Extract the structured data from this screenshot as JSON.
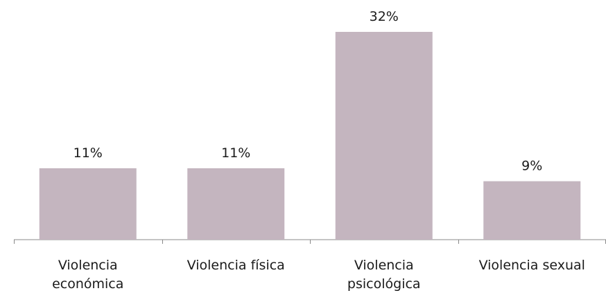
{
  "chart_data": {
    "type": "bar",
    "categories": [
      [
        "Violencia",
        "económica"
      ],
      [
        "Violencia física"
      ],
      [
        "Violencia",
        "psicológica"
      ],
      [
        "Violencia sexual"
      ]
    ],
    "values": [
      11,
      11,
      32,
      9
    ],
    "data_labels": [
      "11%",
      "11%",
      "32%",
      "9%"
    ],
    "title": "",
    "xlabel": "",
    "ylabel": "",
    "ylim": [
      0,
      32
    ],
    "grid": false,
    "legend": "none",
    "colors": {
      "bar": "#c4b5bf",
      "axis": "#888888",
      "text": "#1a1a1a"
    }
  }
}
